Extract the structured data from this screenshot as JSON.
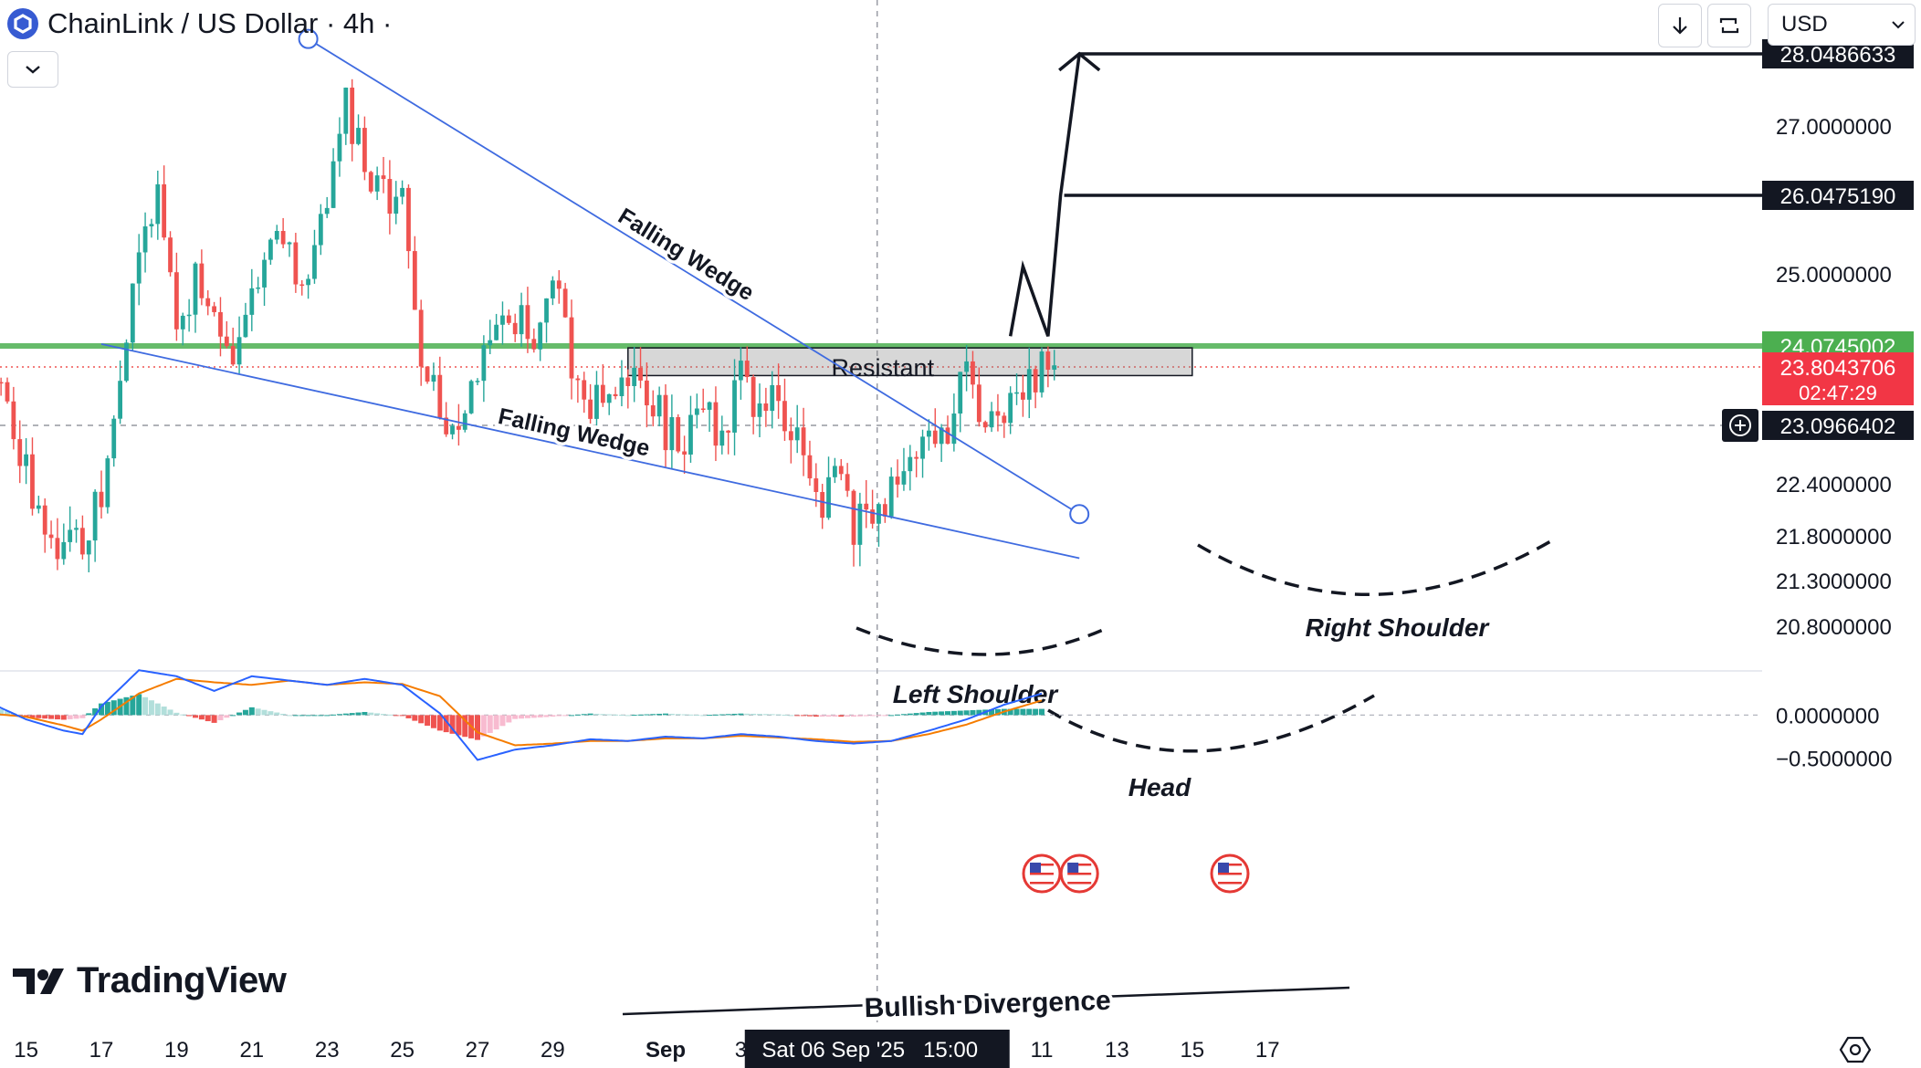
{
  "header": {
    "title": "ChainLink / US Dollar · 4h ·",
    "logo_icon": "chainlink-hexagon-icon",
    "currency": "USD",
    "download_icon": "arrow-down-icon",
    "reload_icon": "refresh-icon",
    "collapse_icon": "chevron-down-icon"
  },
  "brand": {
    "name": "TradingView",
    "icon": "tradingview-logo-icon"
  },
  "colors": {
    "up": "#26a69a",
    "down": "#ef5350",
    "support": "#66bb6a",
    "wedge": "#3f6be0",
    "macd": "#2962ff",
    "signal": "#f57c00",
    "hist_up": "#26a69a",
    "hist_down": "#ef5350",
    "resistance_label_bg": "#f23645",
    "support_label_bg": "#4caf50",
    "label_dark": "#131722"
  },
  "chart_data": {
    "type": "candlestick",
    "symbol": "ChainLink / US Dollar",
    "timeframe": "4h",
    "date_range": [
      "2025-08-14",
      "2025-09-18"
    ],
    "x_tick_labels": [
      "15",
      "17",
      "19",
      "21",
      "23",
      "25",
      "27",
      "29",
      "Sep",
      "3",
      "11",
      "13",
      "15",
      "17"
    ],
    "x_tick_dates": [
      "2025-08-15",
      "2025-08-17",
      "2025-08-19",
      "2025-08-21",
      "2025-08-23",
      "2025-08-25",
      "2025-08-27",
      "2025-08-29",
      "2025-09-01",
      "2025-09-03",
      "2025-09-11",
      "2025-09-13",
      "2025-09-15",
      "2025-09-17"
    ],
    "y_tick_labels": [
      "27.0000000",
      "25.0000000",
      "22.4000000",
      "21.8000000",
      "21.3000000",
      "20.8000000"
    ],
    "y_tick_values": [
      27.0,
      25.0,
      22.4,
      21.8,
      21.3,
      20.8
    ],
    "ylim": [
      20.3,
      28.9
    ],
    "close_path_dates": [
      "2025-08-14",
      "2025-08-14 12:00",
      "2025-08-15",
      "2025-08-15 12:00",
      "2025-08-16",
      "2025-08-16 12:00",
      "2025-08-17",
      "2025-08-17 12:00",
      "2025-08-18",
      "2025-08-18 12:00",
      "2025-08-19",
      "2025-08-19 12:00",
      "2025-08-20",
      "2025-08-20 12:00",
      "2025-08-21",
      "2025-08-21 12:00",
      "2025-08-22",
      "2025-08-22 12:00",
      "2025-08-23",
      "2025-08-23 12:00",
      "2025-08-24",
      "2025-08-24 12:00",
      "2025-08-25",
      "2025-08-25 12:00",
      "2025-08-26",
      "2025-08-26 12:00",
      "2025-08-27",
      "2025-08-27 12:00",
      "2025-08-28",
      "2025-08-28 12:00",
      "2025-08-29",
      "2025-08-29 12:00",
      "2025-08-30",
      "2025-08-30 12:00",
      "2025-08-31",
      "2025-08-31 12:00",
      "2025-09-01",
      "2025-09-01 12:00",
      "2025-09-02",
      "2025-09-02 12:00",
      "2025-09-03",
      "2025-09-03 12:00",
      "2025-09-04",
      "2025-09-04 12:00",
      "2025-09-05",
      "2025-09-05 12:00",
      "2025-09-06",
      "2025-09-06 12:00",
      "2025-09-07",
      "2025-09-07 12:00",
      "2025-09-08",
      "2025-09-08 12:00",
      "2025-09-09",
      "2025-09-09 12:00",
      "2025-09-10",
      "2025-09-10 12:00",
      "2025-09-11",
      "2025-09-11 08:00"
    ],
    "close_path": [
      24.0,
      23.3,
      22.5,
      22.0,
      21.6,
      21.7,
      22.4,
      23.6,
      25.3,
      26.0,
      24.2,
      24.9,
      24.3,
      23.7,
      24.8,
      25.6,
      25.3,
      24.7,
      26.1,
      27.3,
      26.4,
      26.1,
      25.9,
      24.0,
      23.3,
      23.1,
      23.6,
      24.4,
      24.5,
      24.1,
      25.1,
      23.8,
      23.4,
      23.5,
      23.8,
      23.6,
      23.0,
      22.9,
      23.2,
      23.0,
      23.7,
      23.3,
      23.5,
      22.9,
      22.1,
      22.6,
      21.95,
      22.0,
      22.4,
      22.5,
      22.9,
      23.05,
      23.8,
      23.0,
      23.4,
      23.6,
      23.8,
      23.8
    ],
    "price_labels": [
      {
        "value": 28.0486633,
        "text": "28.0486633",
        "role": "target"
      },
      {
        "value": 26.047519,
        "text": "26.0475190",
        "role": "target"
      },
      {
        "value": 24.0745002,
        "text": "24.0745002",
        "role": "support"
      },
      {
        "value": 23.8043706,
        "text": "23.8043706",
        "countdown": "02:47:29",
        "role": "last-price"
      },
      {
        "value": 23.0966402,
        "text": "23.0966402",
        "role": "crosshair"
      }
    ],
    "crosshair": {
      "date": "2025-09-06 15:00",
      "label": "Sat 06 Sep '25   15:00",
      "price": 23.0966402
    },
    "support_line": {
      "value": 24.0745002
    },
    "resistance_zone": {
      "label": "Resistant",
      "from": "2025-08-31",
      "to": "2025-09-15",
      "bottom": 23.7,
      "top": 24.05
    },
    "wedge_upper": {
      "label": "Falling Wedge",
      "from": [
        "2025-08-22 12:00",
        28.25
      ],
      "to": [
        "2025-09-12",
        22.05
      ]
    },
    "wedge_lower": {
      "label": "Falling Wedge",
      "from": [
        "2025-08-17",
        24.1
      ],
      "to": [
        "2025-09-12",
        21.55
      ]
    },
    "annotations": [
      "Left Shoulder",
      "Head",
      "Right Shoulder",
      "Bullish Divergence"
    ],
    "projection_path_dates": [
      "2025-09-10 04:00",
      "2025-09-10 12:00",
      "2025-09-11 04:00",
      "2025-09-11 12:00",
      "2025-09-12"
    ],
    "projection_path": [
      24.2,
      25.1,
      24.2,
      26.05,
      28.05
    ],
    "events": [
      {
        "date": "2025-09-11",
        "icon": "us-flag-icon"
      },
      {
        "date": "2025-09-12",
        "icon": "us-flag-icon"
      },
      {
        "date": "2025-09-16",
        "icon": "us-flag-icon"
      }
    ],
    "macd": {
      "y_tick_labels": [
        "0.0000000",
        "−0.5000000"
      ],
      "y_tick_values": [
        0.0,
        -0.5
      ],
      "ylim": [
        -0.62,
        0.48
      ],
      "dates": [
        "2025-08-14",
        "2025-08-15",
        "2025-08-16",
        "2025-08-16 12:00",
        "2025-08-17",
        "2025-08-18",
        "2025-08-19",
        "2025-08-20",
        "2025-08-21",
        "2025-08-22",
        "2025-08-23",
        "2025-08-24",
        "2025-08-25",
        "2025-08-26",
        "2025-08-27",
        "2025-08-28",
        "2025-08-29",
        "2025-08-30",
        "2025-08-31",
        "2025-09-01",
        "2025-09-02",
        "2025-09-03",
        "2025-09-04",
        "2025-09-05",
        "2025-09-06",
        "2025-09-07",
        "2025-09-08",
        "2025-09-09",
        "2025-09-10",
        "2025-09-11"
      ],
      "macd": [
        0.15,
        -0.05,
        -0.18,
        -0.22,
        0.1,
        0.52,
        0.45,
        0.28,
        0.45,
        0.4,
        0.35,
        0.42,
        0.35,
        0.02,
        -0.52,
        -0.4,
        -0.35,
        -0.28,
        -0.3,
        -0.25,
        -0.27,
        -0.22,
        -0.25,
        -0.3,
        -0.33,
        -0.3,
        -0.18,
        -0.05,
        0.12,
        0.25
      ],
      "signal": [
        0.02,
        -0.02,
        -0.12,
        -0.18,
        -0.05,
        0.25,
        0.42,
        0.38,
        0.35,
        0.4,
        0.35,
        0.38,
        0.36,
        0.22,
        -0.2,
        -0.35,
        -0.33,
        -0.3,
        -0.3,
        -0.27,
        -0.27,
        -0.24,
        -0.26,
        -0.28,
        -0.31,
        -0.3,
        -0.22,
        -0.11,
        0.04,
        0.17
      ]
    }
  }
}
